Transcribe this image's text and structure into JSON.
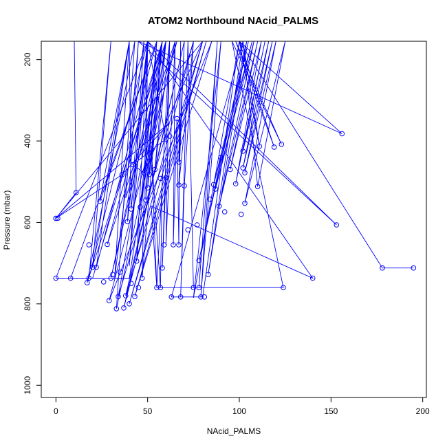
{
  "chart_data": {
    "type": "line",
    "title": "ATOM2 Northbound NAcid_PALMS",
    "xlabel": "NAcid_PALMS",
    "ylabel": "Pressure (mbar)",
    "xlim": [
      -8,
      202
    ],
    "ylim": [
      1030,
      155
    ],
    "y_reversed": true,
    "x_ticks": [
      0,
      50,
      100,
      150,
      200
    ],
    "y_ticks": [
      200,
      400,
      600,
      800,
      1000
    ],
    "grid": false,
    "color": "#0000ff",
    "marker": "open-circle",
    "series": [
      {
        "values": [
          [
            10,
            155
          ],
          [
            11,
            527
          ],
          [
            0,
            590
          ],
          [
            0,
            590
          ],
          [
            36,
            483
          ],
          [
            62,
            355
          ],
          [
            0,
            590
          ],
          [
            80,
            155
          ],
          [
            48,
            478
          ],
          [
            42,
            458
          ],
          [
            60,
            395
          ],
          [
            50,
            155
          ],
          [
            18,
            737
          ],
          [
            30,
            155
          ],
          [
            20,
            710
          ],
          [
            40,
            155
          ],
          [
            22,
            710
          ],
          [
            55,
            155
          ],
          [
            24,
            548
          ],
          [
            40,
            155
          ],
          [
            55,
            155
          ],
          [
            8,
            737
          ],
          [
            20,
            737
          ],
          [
            58,
            155
          ],
          [
            60,
            155
          ],
          [
            17,
            748
          ],
          [
            43,
            155
          ],
          [
            33,
            812
          ],
          [
            65,
            155
          ],
          [
            28,
            654
          ],
          [
            58,
            155
          ],
          [
            50,
            155
          ],
          [
            0,
            737
          ],
          [
            40,
            737
          ],
          [
            60,
            155
          ],
          [
            30,
            737
          ],
          [
            58,
            155
          ],
          [
            34,
            782
          ],
          [
            75,
            155
          ],
          [
            37,
            810
          ],
          [
            70,
            155
          ],
          [
            38,
            780
          ],
          [
            80,
            155
          ],
          [
            40,
            800
          ],
          [
            82,
            155
          ],
          [
            43,
            782
          ],
          [
            85,
            155
          ],
          [
            29,
            792
          ],
          [
            66,
            155
          ],
          [
            38,
            540
          ],
          [
            45,
            155
          ],
          [
            39,
            598
          ],
          [
            50,
            155
          ],
          [
            41,
            567
          ],
          [
            40,
            155
          ],
          [
            32,
            738
          ],
          [
            48,
            155
          ],
          [
            40,
            707
          ],
          [
            50,
            155
          ],
          [
            44,
            695
          ],
          [
            55,
            155
          ],
          [
            46,
            562
          ],
          [
            58,
            155
          ],
          [
            47,
            737
          ],
          [
            50,
            155
          ],
          [
            49,
            545
          ],
          [
            55,
            155
          ],
          [
            50,
            515
          ],
          [
            58,
            155
          ],
          [
            51,
            482
          ],
          [
            60,
            155
          ],
          [
            54,
            470
          ],
          [
            62,
            155
          ],
          [
            55,
            760
          ],
          [
            52,
            420
          ],
          [
            57,
            760
          ],
          [
            58,
            490
          ],
          [
            60,
            490
          ],
          [
            58,
            712
          ],
          [
            62,
            155
          ],
          [
            60,
            655
          ],
          [
            65,
            155
          ],
          [
            64,
            655
          ],
          [
            66,
            345
          ],
          [
            67,
            655
          ],
          [
            68,
            155
          ],
          [
            67,
            452
          ],
          [
            70,
            155
          ],
          [
            67,
            508
          ],
          [
            75,
            155
          ],
          [
            70,
            510
          ],
          [
            68,
            783
          ],
          [
            72,
            155
          ],
          [
            75,
            760
          ],
          [
            78,
            760
          ],
          [
            88,
            155
          ],
          [
            79,
            783
          ],
          [
            90,
            155
          ],
          [
            75,
            785
          ],
          [
            100,
            155
          ],
          [
            80,
            783
          ],
          [
            70,
            783
          ],
          [
            63,
            783
          ],
          [
            102,
            155
          ],
          [
            83,
            728
          ],
          [
            104,
            155
          ],
          [
            78,
            693
          ],
          [
            105,
            155
          ],
          [
            86,
            507
          ],
          [
            107,
            155
          ],
          [
            87,
            518
          ],
          [
            108,
            155
          ],
          [
            89,
            560
          ],
          [
            110,
            155
          ],
          [
            95,
            470
          ],
          [
            112,
            155
          ],
          [
            98,
            505
          ],
          [
            114,
            155
          ],
          [
            102,
            425
          ],
          [
            116,
            155
          ],
          [
            102,
            466
          ],
          [
            118,
            155
          ],
          [
            103,
            478
          ],
          [
            120,
            155
          ],
          [
            103,
            553
          ],
          [
            125,
            155
          ],
          [
            110,
            512
          ],
          [
            102,
            155
          ],
          [
            111,
            413
          ],
          [
            100,
            155
          ],
          [
            119,
            415
          ],
          [
            98,
            155
          ],
          [
            123,
            408
          ],
          [
            96,
            155
          ],
          [
            124,
            760
          ],
          [
            55,
            760
          ],
          [
            52,
            560
          ],
          [
            140,
            737
          ],
          [
            50,
            155
          ],
          [
            153,
            606
          ],
          [
            45,
            155
          ],
          [
            156,
            382
          ],
          [
            100,
            155
          ],
          [
            178,
            712
          ],
          [
            195,
            712
          ]
        ]
      }
    ],
    "points": [
      [
        11,
        527
      ],
      [
        0,
        590
      ],
      [
        0,
        590
      ],
      [
        1,
        590
      ],
      [
        18,
        655
      ],
      [
        20,
        710
      ],
      [
        22,
        710
      ],
      [
        24,
        548
      ],
      [
        17,
        748
      ],
      [
        8,
        737
      ],
      [
        0,
        737
      ],
      [
        18,
        737
      ],
      [
        26,
        746
      ],
      [
        28,
        654
      ],
      [
        29,
        792
      ],
      [
        30,
        737
      ],
      [
        31,
        728
      ],
      [
        33,
        812
      ],
      [
        34,
        782
      ],
      [
        35,
        722
      ],
      [
        36,
        483
      ],
      [
        37,
        810
      ],
      [
        38,
        780
      ],
      [
        39,
        598
      ],
      [
        40,
        800
      ],
      [
        41,
        750
      ],
      [
        41,
        567
      ],
      [
        42,
        458
      ],
      [
        43,
        782
      ],
      [
        44,
        695
      ],
      [
        46,
        562
      ],
      [
        47,
        737
      ],
      [
        45,
        760
      ],
      [
        48,
        478
      ],
      [
        49,
        545
      ],
      [
        50,
        515
      ],
      [
        50,
        450
      ],
      [
        51,
        482
      ],
      [
        52,
        420
      ],
      [
        54,
        470
      ],
      [
        55,
        760
      ],
      [
        57,
        760
      ],
      [
        57,
        492
      ],
      [
        58,
        712
      ],
      [
        59,
        655
      ],
      [
        60,
        395
      ],
      [
        60,
        490
      ],
      [
        62,
        388
      ],
      [
        63,
        783
      ],
      [
        64,
        655
      ],
      [
        66,
        345
      ],
      [
        67,
        452
      ],
      [
        67,
        508
      ],
      [
        67,
        655
      ],
      [
        68,
        783
      ],
      [
        70,
        510
      ],
      [
        72,
        618
      ],
      [
        75,
        760
      ],
      [
        77,
        606
      ],
      [
        78,
        760
      ],
      [
        78,
        693
      ],
      [
        79,
        783
      ],
      [
        81,
        783
      ],
      [
        83,
        728
      ],
      [
        84,
        543
      ],
      [
        86,
        507
      ],
      [
        87,
        518
      ],
      [
        89,
        560
      ],
      [
        90,
        440
      ],
      [
        92,
        574
      ],
      [
        95,
        470
      ],
      [
        98,
        505
      ],
      [
        101,
        580
      ],
      [
        102,
        425
      ],
      [
        102,
        466
      ],
      [
        103,
        478
      ],
      [
        103,
        553
      ],
      [
        110,
        512
      ],
      [
        111,
        413
      ],
      [
        119,
        415
      ],
      [
        123,
        408
      ],
      [
        124,
        760
      ],
      [
        140,
        737
      ],
      [
        153,
        606
      ],
      [
        156,
        382
      ],
      [
        178,
        712
      ],
      [
        195,
        712
      ]
    ]
  }
}
